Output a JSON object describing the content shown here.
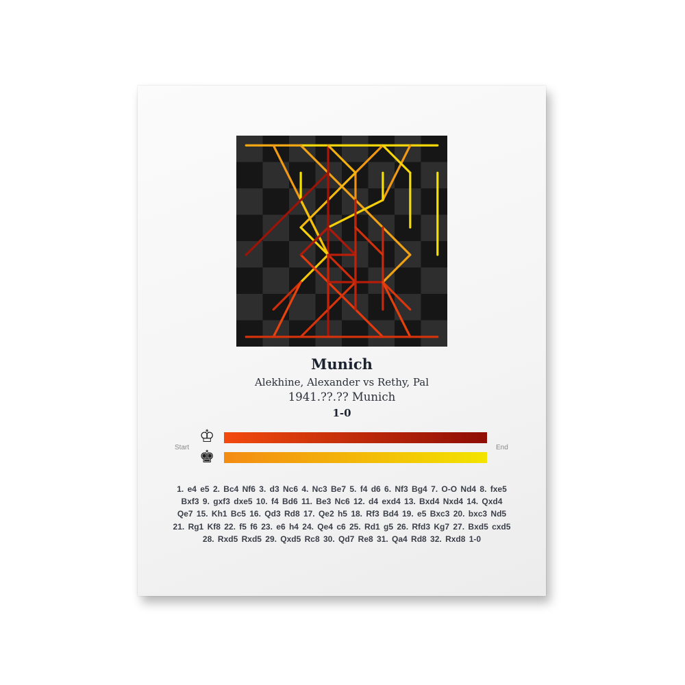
{
  "game": {
    "title": "Munich",
    "players": "Alekhine, Alexander vs Rethy, Pal",
    "date_event": "1941.??.?? Munich",
    "result": "1-0"
  },
  "legend": {
    "start_label": "Start",
    "end_label": "End",
    "white_icon": "white-king-icon",
    "black_icon": "black-king-icon",
    "white_gradient": [
      "#f24a0e",
      "#8e0d05"
    ],
    "black_gradient": [
      "#f38b12",
      "#f3e400"
    ]
  },
  "board_colors": {
    "light": "#2e2e2e",
    "dark": "#161616"
  },
  "moves_text": "1. e4  e5  2. Bc4  Nf6  3. d3  Nc6  4. Nc3  Be7  5. f4  d6  6. Nf3  Bg4  7. O-O  Nd4  8. fxe5  Bxf3  9. gxf3  dxe5  10. f4  Bd6  11. Be3  Nc6  12. d4  exd4  13. Bxd4  Nxd4  14. Qxd4  Qe7  15. Kh1  Bc5  16. Qd3  Rd8  17. Qe2  h5  18. Rf3  Bd4  19. e5  Bxc3  20. bxc3  Nd5  21. Rg1  Kf8  22. f5  f6  23. e6  h4  24. Qe4  c6  25. Rd1  g5  26. Rfd3  Kg7  27. Bxd5  cxd5  28. Rxd5  Rxd5  29. Qxd5  Rc8  30. Qd7  Re8  31. Qa4  Rd8  32. Rxd8  1-0",
  "move_paths": [
    {
      "from": "a8",
      "to": "c8",
      "color": "#f2a814"
    },
    {
      "from": "c8",
      "to": "h8",
      "color": "#f6d80a"
    },
    {
      "from": "b8",
      "to": "c6",
      "color": "#f09a14"
    },
    {
      "from": "c7",
      "to": "c6",
      "color": "#f5e000"
    },
    {
      "from": "c8",
      "to": "g4",
      "color": "#f0a216"
    },
    {
      "from": "g4",
      "to": "f3",
      "color": "#f0a216"
    },
    {
      "from": "d8",
      "to": "d1",
      "color": "#a8160a"
    },
    {
      "from": "d8",
      "to": "e7",
      "color": "#f2b010"
    },
    {
      "from": "f8",
      "to": "e7",
      "color": "#f09812"
    },
    {
      "from": "e7",
      "to": "e5",
      "color": "#f09012"
    },
    {
      "from": "g8",
      "to": "f6",
      "color": "#f09a14"
    },
    {
      "from": "f8",
      "to": "g7",
      "color": "#f5d40a"
    },
    {
      "from": "g7",
      "to": "g5",
      "color": "#f5dc08"
    },
    {
      "from": "h7",
      "to": "h4",
      "color": "#f5e000"
    },
    {
      "from": "f7",
      "to": "f6",
      "color": "#f5e000"
    },
    {
      "from": "f6",
      "to": "d5",
      "color": "#f5d00a"
    },
    {
      "from": "c6",
      "to": "d4",
      "color": "#f5c80c"
    },
    {
      "from": "d4",
      "to": "c6",
      "color": "#f4c00c"
    },
    {
      "from": "e7",
      "to": "c5",
      "color": "#f4b810"
    },
    {
      "from": "c5",
      "to": "d4",
      "color": "#f5d20a"
    },
    {
      "from": "d4",
      "to": "c3",
      "color": "#f5c60c"
    },
    {
      "from": "d7",
      "to": "a4",
      "color": "#9a1408"
    },
    {
      "from": "f1",
      "to": "c4",
      "color": "#e23a0e"
    },
    {
      "from": "c4",
      "to": "d5",
      "color": "#b01a0a"
    },
    {
      "from": "e4",
      "to": "d5",
      "color": "#ac180a"
    },
    {
      "from": "d5",
      "to": "d7",
      "color": "#a01408"
    },
    {
      "from": "e2",
      "to": "e6",
      "color": "#c0220a"
    },
    {
      "from": "f2",
      "to": "f5",
      "color": "#c8280c"
    },
    {
      "from": "f4",
      "to": "e5",
      "color": "#d0300c"
    },
    {
      "from": "d3",
      "to": "f3",
      "color": "#b41c0a"
    },
    {
      "from": "c1",
      "to": "e3",
      "color": "#d8340c"
    },
    {
      "from": "e3",
      "to": "d4",
      "color": "#cc2c0c"
    },
    {
      "from": "g2",
      "to": "f3",
      "color": "#d8360c"
    },
    {
      "from": "g1",
      "to": "f3",
      "color": "#e4400e"
    },
    {
      "from": "c3",
      "to": "b2",
      "color": "#cc2e0c"
    },
    {
      "from": "b1",
      "to": "c3",
      "color": "#e8420e"
    },
    {
      "from": "a1",
      "to": "h1",
      "color": "#d2320c"
    },
    {
      "from": "d2",
      "to": "d4",
      "color": "#c2240a"
    },
    {
      "from": "d4",
      "to": "e4",
      "color": "#b81e0a"
    },
    {
      "from": "e4",
      "to": "e2",
      "color": "#be220a"
    }
  ]
}
